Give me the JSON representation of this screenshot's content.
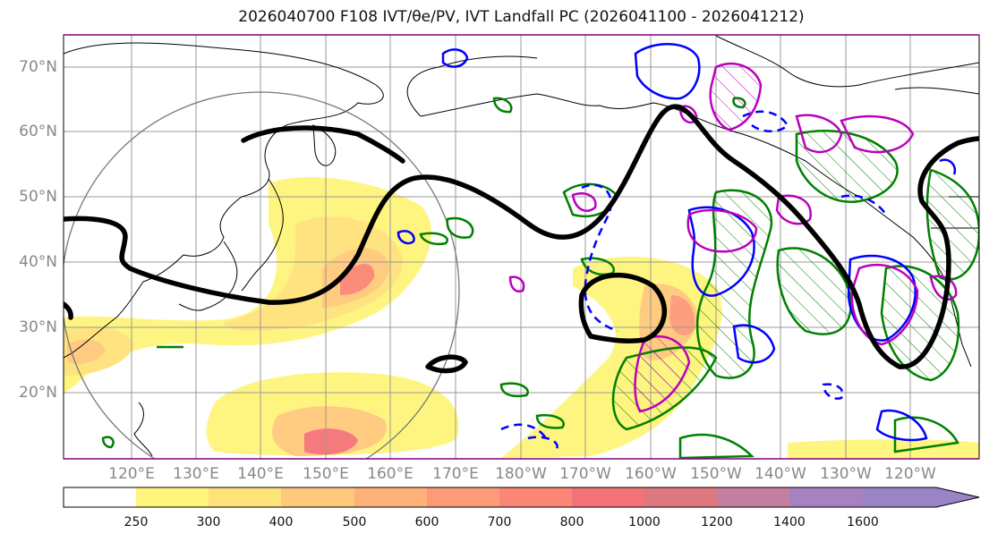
{
  "title": "2026040700 F108 IVT/θe/PV, IVT Landfall PC (2026041100 - 2026041212)",
  "map": {
    "projection": "plate-carree",
    "lat_labels": [
      "70°N",
      "60°N",
      "50°N",
      "40°N",
      "30°N",
      "20°N"
    ],
    "lon_labels": [
      "120°E",
      "130°E",
      "140°E",
      "150°E",
      "160°E",
      "170°E",
      "180°W",
      "170°W",
      "160°W",
      "150°W",
      "140°W",
      "130°W",
      "120°W"
    ],
    "colors": {
      "coastline": "#000000",
      "gridline": "#999999",
      "theta_e_contour": "#000000",
      "green_contour": "#008000",
      "blue_contour": "#0000ff",
      "magenta_contour": "#bb00bb",
      "circle": "#777777"
    }
  },
  "colorbar": {
    "ticks": [
      "250",
      "300",
      "400",
      "500",
      "600",
      "700",
      "800",
      "1000",
      "1200",
      "1400",
      "1600"
    ],
    "colors": [
      "#ffffff",
      "#fef57a",
      "#fee27a",
      "#fec97a",
      "#feb27a",
      "#fd9a78",
      "#fb8676",
      "#f47378",
      "#de7880",
      "#c47fa0",
      "#a682bf",
      "#9b84c6"
    ]
  }
}
